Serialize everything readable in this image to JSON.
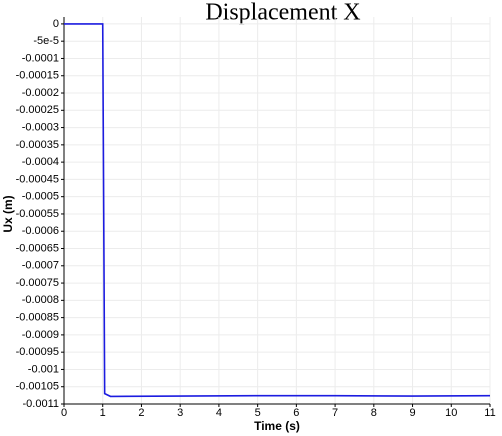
{
  "chart_data": {
    "type": "line",
    "title": "Displacement X",
    "x_label": "Time (s)",
    "y_label": "Ux (m)",
    "x": [
      0,
      1,
      1.05,
      1.2,
      3,
      5,
      7,
      9,
      11
    ],
    "series": [
      {
        "color": "#1c1ce0",
        "values": [
          0,
          0,
          -0.00107,
          -0.001078,
          -0.001077,
          -0.001076,
          -0.001076,
          -0.001077,
          -0.001076
        ]
      }
    ],
    "xlim": [
      0,
      11
    ],
    "ylim": [
      -0.0011,
      2e-05
    ],
    "xticks": [
      0,
      1,
      2,
      3,
      4,
      5,
      6,
      7,
      8,
      9,
      10,
      11
    ],
    "yticks": [
      0,
      {
        "value": -5e-05,
        "label": "-5e-5"
      },
      -0.0001,
      -0.00015,
      -0.0002,
      -0.00025,
      -0.0003,
      -0.00035,
      -0.0004,
      -0.00045,
      -0.0005,
      -0.00055,
      -0.0006,
      -0.00065,
      -0.0007,
      -0.00075,
      -0.0008,
      -0.00085,
      -0.0009,
      -0.00095,
      -0.001,
      -0.00105,
      -0.0011
    ],
    "grid": true
  }
}
